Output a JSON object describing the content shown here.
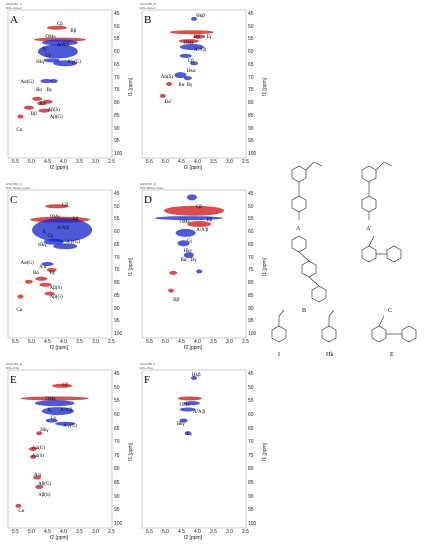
{
  "panels": [
    {
      "id": "A",
      "header": [
        "HSQC80_A",
        "DOL-Aspen"
      ],
      "labels": [
        "Cβ",
        "OMe",
        "Bβ",
        "A/A'β",
        "Iγ",
        "Cγ",
        "Hkγ",
        "A'γ(G)",
        "Aα(G)",
        "Bα",
        "Bγ",
        "A'α",
        "Aβ(S)",
        "Bβ",
        "Aβ(G)",
        "Cα"
      ]
    },
    {
      "id": "B",
      "header": [
        "HSQC80_B",
        "EOL-Aspen"
      ],
      "labels": [
        "Hkβ",
        "Bβ",
        "Eγ",
        "OMe",
        "A/A'β",
        "Cβ",
        "Hkα",
        "Aα(S)",
        "Bα",
        "Bγ",
        "Bα'"
      ]
    },
    {
      "id": "C",
      "header": [
        "HSQC80_C",
        "DOL-Barley straw"
      ],
      "labels": [
        "Cβ",
        "OMe",
        "Bβ",
        "A/A'β",
        "Iγ",
        "Cγ",
        "Hkγ",
        "A'γ(G)",
        "Aα(G)",
        "A'α",
        "Bα",
        "Bγ",
        "Aβ(S)",
        "Aβ(G)",
        "Cα"
      ]
    },
    {
      "id": "D",
      "header": [
        "HSQC80_D",
        "EOL-Barley straw"
      ],
      "labels": [
        "Cβ",
        "OMe",
        "Bβ",
        "A/A'β",
        "Cγ",
        "Hkγ",
        "Bα",
        "Bγ",
        "Bβ'"
      ]
    },
    {
      "id": "E",
      "header": [
        "HSQC80_E",
        "DOL-Pine"
      ],
      "labels": [
        "Cβ",
        "OMe",
        "Iγ",
        "A/A'β",
        "Cγ",
        "A'γ(G)",
        "Hkγ",
        "Aα(G)",
        "Aα(S)",
        "A'α",
        "Aβ(G)",
        "Aβ(S)",
        "Cα"
      ]
    },
    {
      "id": "F",
      "header": [
        "HSQC80_F",
        "EOL-Pine"
      ],
      "labels": [
        "Hkβ",
        "OMe",
        "A/A'β",
        "Hkγ",
        "Cγ"
      ]
    }
  ],
  "axes": {
    "x_label": "f2 [ppm]",
    "y_label": "f1 [ppm]",
    "x_ticks": [
      "5.5",
      "5.0",
      "4.5",
      "4.0",
      "3.5",
      "3.0",
      "2.5"
    ],
    "y_ticks": [
      "45",
      "50",
      "55",
      "60",
      "65",
      "70",
      "75",
      "80",
      "85",
      "90",
      "95",
      "100"
    ]
  },
  "structures": [
    {
      "name": "A"
    },
    {
      "name": "A'"
    },
    {
      "name": "B"
    },
    {
      "name": "C"
    },
    {
      "name": "I"
    },
    {
      "name": "Hk"
    },
    {
      "name": "E"
    }
  ],
  "colors": {
    "red": "#cc1111",
    "blue": "#1122cc",
    "axis": "#888888"
  }
}
